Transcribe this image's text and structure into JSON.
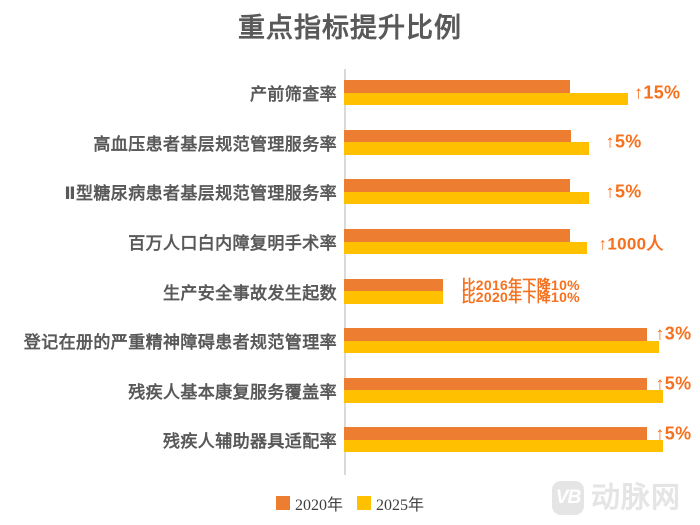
{
  "title": "重点指标提升比例",
  "colors": {
    "bar_2020": "#ED7D31",
    "bar_2025": "#FFC000",
    "annotation": "#F7701D",
    "category_text": "#595959",
    "axis_line": "#D9D9D9",
    "watermark": "#E5E5E5"
  },
  "legend": {
    "items": [
      {
        "label": "2020年",
        "color": "#ED7D31"
      },
      {
        "label": "2025年",
        "color": "#FFC000"
      }
    ]
  },
  "watermark": {
    "logo_text": "VB",
    "brand_text": "动脉网"
  },
  "chart_data": {
    "type": "bar",
    "orientation": "horizontal",
    "title": "重点指标提升比例",
    "legend_labels": [
      "2020年",
      "2025年"
    ],
    "legend_position": "bottom-center",
    "value_axis_labels_shown": false,
    "note": "no numeric axis shown in source; series values are relative bar lengths as % of plot width",
    "categories": [
      "产前筛查率",
      "高血压患者基层规范管理服务率",
      "Ⅱ型糖尿病患者基层规范管理服务率",
      "百万人口白内障复明手术率",
      "生产安全事故发生起数",
      "登记在册的严重精神障碍患者规范管理率",
      "残疾人基本康复服务覆盖率",
      "残疾人辅助器具适配率"
    ],
    "series": [
      {
        "name": "2020年",
        "length_pct": [
          63.5,
          63.8,
          63.5,
          63.5,
          27.8,
          85.1,
          85.1,
          85.1
        ]
      },
      {
        "name": "2025年",
        "length_pct": [
          79.8,
          68.8,
          68.8,
          68.3,
          27.8,
          88.5,
          89.6,
          89.6
        ]
      }
    ],
    "annotations": [
      [
        {
          "text": "↑15%",
          "valign": "pair",
          "left_pct": 81.5,
          "size": 18
        }
      ],
      [
        {
          "text": "↑5%",
          "valign": "pair",
          "left_pct": 73.5,
          "size": 18
        }
      ],
      [
        {
          "text": "↑5%",
          "valign": "pair",
          "left_pct": 73.5,
          "size": 18
        }
      ],
      [
        {
          "text": "↑1000人",
          "valign": "pair",
          "left_pct": 71.5,
          "size": 17
        }
      ],
      [
        {
          "text": "比2016年下降10%",
          "valign": "bar0",
          "left_pct": 33,
          "size": 14
        },
        {
          "text": "比2020年下降10%",
          "valign": "bar1",
          "left_pct": 33,
          "size": 14
        }
      ],
      [
        {
          "text": "↑3%",
          "valign": "bar0",
          "left_pct": 87.5,
          "size": 18
        }
      ],
      [
        {
          "text": "↑5%",
          "valign": "bar0",
          "left_pct": 87.5,
          "size": 18
        }
      ],
      [
        {
          "text": "↑5%",
          "valign": "bar0",
          "left_pct": 87.5,
          "size": 18
        }
      ]
    ]
  }
}
